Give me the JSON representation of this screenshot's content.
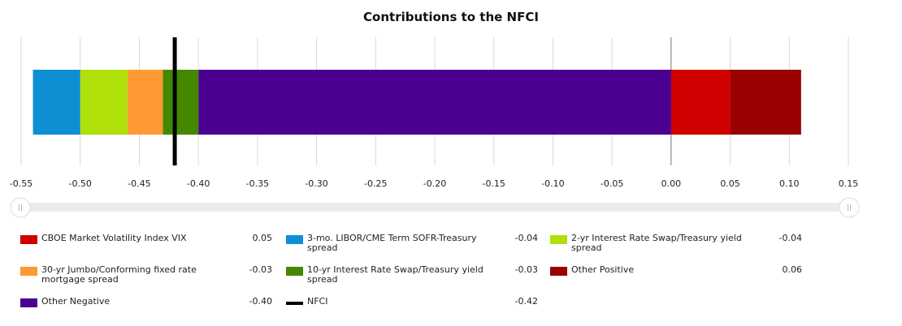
{
  "chart_data": {
    "type": "bar",
    "orientation": "horizontal-stacked",
    "title": "Contributions to the NFCI",
    "xlim": [
      -0.55,
      0.15
    ],
    "xticks": [
      "-0.55",
      "-0.50",
      "-0.45",
      "-0.40",
      "-0.35",
      "-0.30",
      "-0.25",
      "-0.20",
      "-0.15",
      "-0.10",
      "-0.05",
      "0.00",
      "0.05",
      "0.10",
      "0.15"
    ],
    "grid": "vertical",
    "series": [
      {
        "name": "Other Negative",
        "value": -0.4,
        "display": "-0.40",
        "color": "#4B0092"
      },
      {
        "name": "10-yr Interest Rate Swap/Treasury yield spread",
        "value": -0.03,
        "display": "-0.03",
        "color": "#448800"
      },
      {
        "name": "30-yr Jumbo/Conforming fixed rate mortgage spread",
        "value": -0.03,
        "display": "-0.03",
        "color": "#FF9933"
      },
      {
        "name": "2-yr Interest Rate Swap/Treasury yield spread",
        "value": -0.04,
        "display": "-0.04",
        "color": "#B0E00A"
      },
      {
        "name": "3-mo. LIBOR/CME Term SOFR-Treasury spread",
        "value": -0.04,
        "display": "-0.04",
        "color": "#0E8FD3"
      },
      {
        "name": "CBOE Market Volatility Index VIX",
        "value": 0.05,
        "display": "0.05",
        "color": "#D00000"
      },
      {
        "name": "Other Positive",
        "value": 0.06,
        "display": "0.06",
        "color": "#990000"
      }
    ],
    "nfci": {
      "name": "NFCI",
      "value": -0.42,
      "display": "-0.42",
      "color": "#000000"
    },
    "legend": [
      {
        "label": "CBOE Market Volatility Index VIX",
        "value": "0.05",
        "color": "#D00000",
        "kind": "box"
      },
      {
        "label": "3-mo. LIBOR/CME Term SOFR-Treasury spread",
        "value": "-0.04",
        "color": "#0E8FD3",
        "kind": "box"
      },
      {
        "label": "2-yr Interest Rate Swap/Treasury yield spread",
        "value": "-0.04",
        "color": "#B0E00A",
        "kind": "box"
      },
      {
        "label": "30-yr Jumbo/Conforming fixed rate mortgage spread",
        "value": "-0.03",
        "color": "#FF9933",
        "kind": "box"
      },
      {
        "label": "10-yr Interest Rate Swap/Treasury yield spread",
        "value": "-0.03",
        "color": "#448800",
        "kind": "box"
      },
      {
        "label": "Other Positive",
        "value": "0.06",
        "color": "#990000",
        "kind": "box"
      },
      {
        "label": "Other Negative",
        "value": "-0.40",
        "color": "#4B0092",
        "kind": "box"
      },
      {
        "label": "NFCI",
        "value": "-0.42",
        "color": "#000000",
        "kind": "line"
      }
    ]
  }
}
